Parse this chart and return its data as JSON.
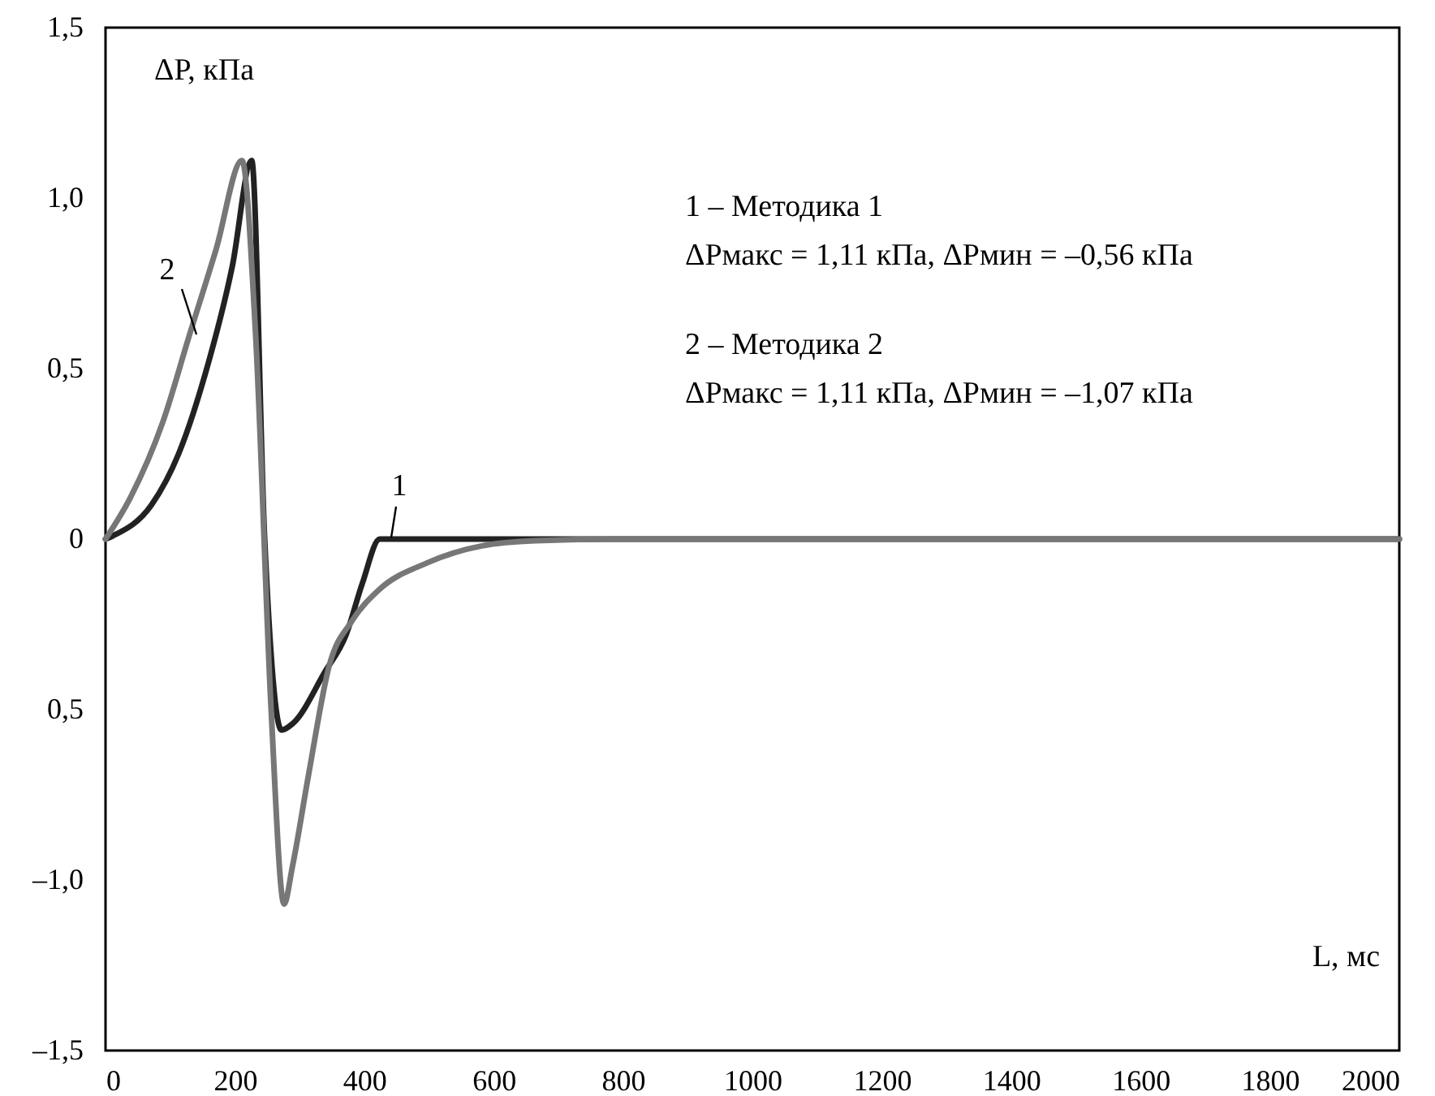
{
  "chart_data": {
    "type": "line",
    "xlabel": "L, мс",
    "ylabel": "ΔP, кПа",
    "xlim": [
      0,
      2000
    ],
    "xticks": [
      0,
      200,
      400,
      600,
      800,
      1000,
      1200,
      1400,
      1600,
      1800,
      2000
    ],
    "ylim": [
      -1.5,
      1.5
    ],
    "yticks": [
      {
        "value": -1.5,
        "label": "–1,5"
      },
      {
        "value": -1.0,
        "label": "–1,0"
      },
      {
        "value": -0.5,
        "label": "0,5"
      },
      {
        "value": 0,
        "label": "0"
      },
      {
        "value": 0.5,
        "label": "0,5"
      },
      {
        "value": 1.0,
        "label": "1,0"
      },
      {
        "value": 1.5,
        "label": "1,5"
      }
    ],
    "grid": false,
    "marker": "none",
    "line_style": "solid",
    "series": [
      {
        "name": "1",
        "color": "#222222",
        "x": [
          0,
          12,
          71,
          113,
          155,
          196,
          226,
          246,
          272,
          290,
          339,
          372,
          397,
          424,
          600,
          1000,
          1500,
          2000
        ],
        "values": [
          0,
          0.01,
          0.1,
          0.25,
          0.49,
          0.8,
          1.11,
          0,
          -0.56,
          -0.54,
          -0.39,
          -0.28,
          -0.13,
          0,
          0,
          0,
          0,
          0
        ]
      },
      {
        "name": "2",
        "color": "#777777",
        "x": [
          0,
          38,
          88,
          130,
          171,
          211,
          232,
          256,
          276,
          289,
          314,
          346,
          381,
          422,
          497,
          582,
          665,
          800,
          1200,
          2000
        ],
        "values": [
          0,
          0.12,
          0.34,
          0.6,
          0.85,
          1.11,
          0.6,
          -0.5,
          -1.07,
          -0.96,
          -0.69,
          -0.37,
          -0.24,
          -0.15,
          -0.07,
          -0.02,
          -0.005,
          0,
          0,
          0
        ]
      }
    ],
    "annotations": [
      "1 – Методика 1",
      "ΔPмакс = 1,11 кПа, ΔPмин = –0,56 кПа",
      "2 – Методика 2",
      "ΔPмакс = 1,11 кПа, ΔPмин = –1,07 кПа"
    ]
  }
}
